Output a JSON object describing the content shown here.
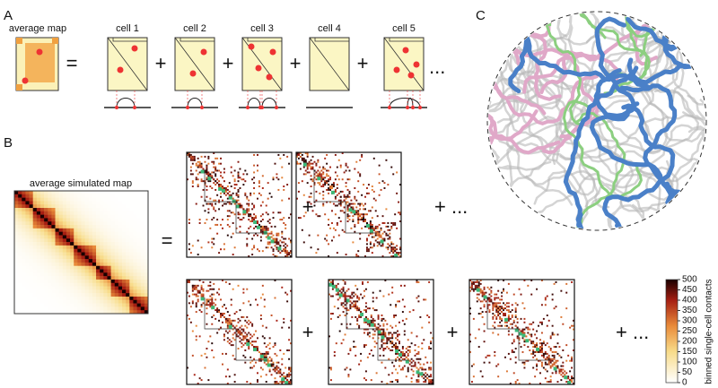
{
  "panel_a": {
    "label": "A",
    "average_label": "average map",
    "equals": "=",
    "plus": "+",
    "ellipsis": "...",
    "cells": [
      {
        "label": "cell 1"
      },
      {
        "label": "cell 2"
      },
      {
        "label": "cell 3"
      },
      {
        "label": "cell 4"
      },
      {
        "label": "cell 5"
      }
    ]
  },
  "panel_b": {
    "label": "B",
    "average_label": "average simulated map",
    "equals": "=",
    "plus": "+",
    "continuation": "+ ...",
    "colorbar": {
      "label": "binned single-cell contacts",
      "ticks": [
        0,
        50,
        100,
        150,
        200,
        250,
        300,
        350,
        400,
        450,
        500
      ]
    }
  },
  "panel_c": {
    "label": "C"
  }
}
